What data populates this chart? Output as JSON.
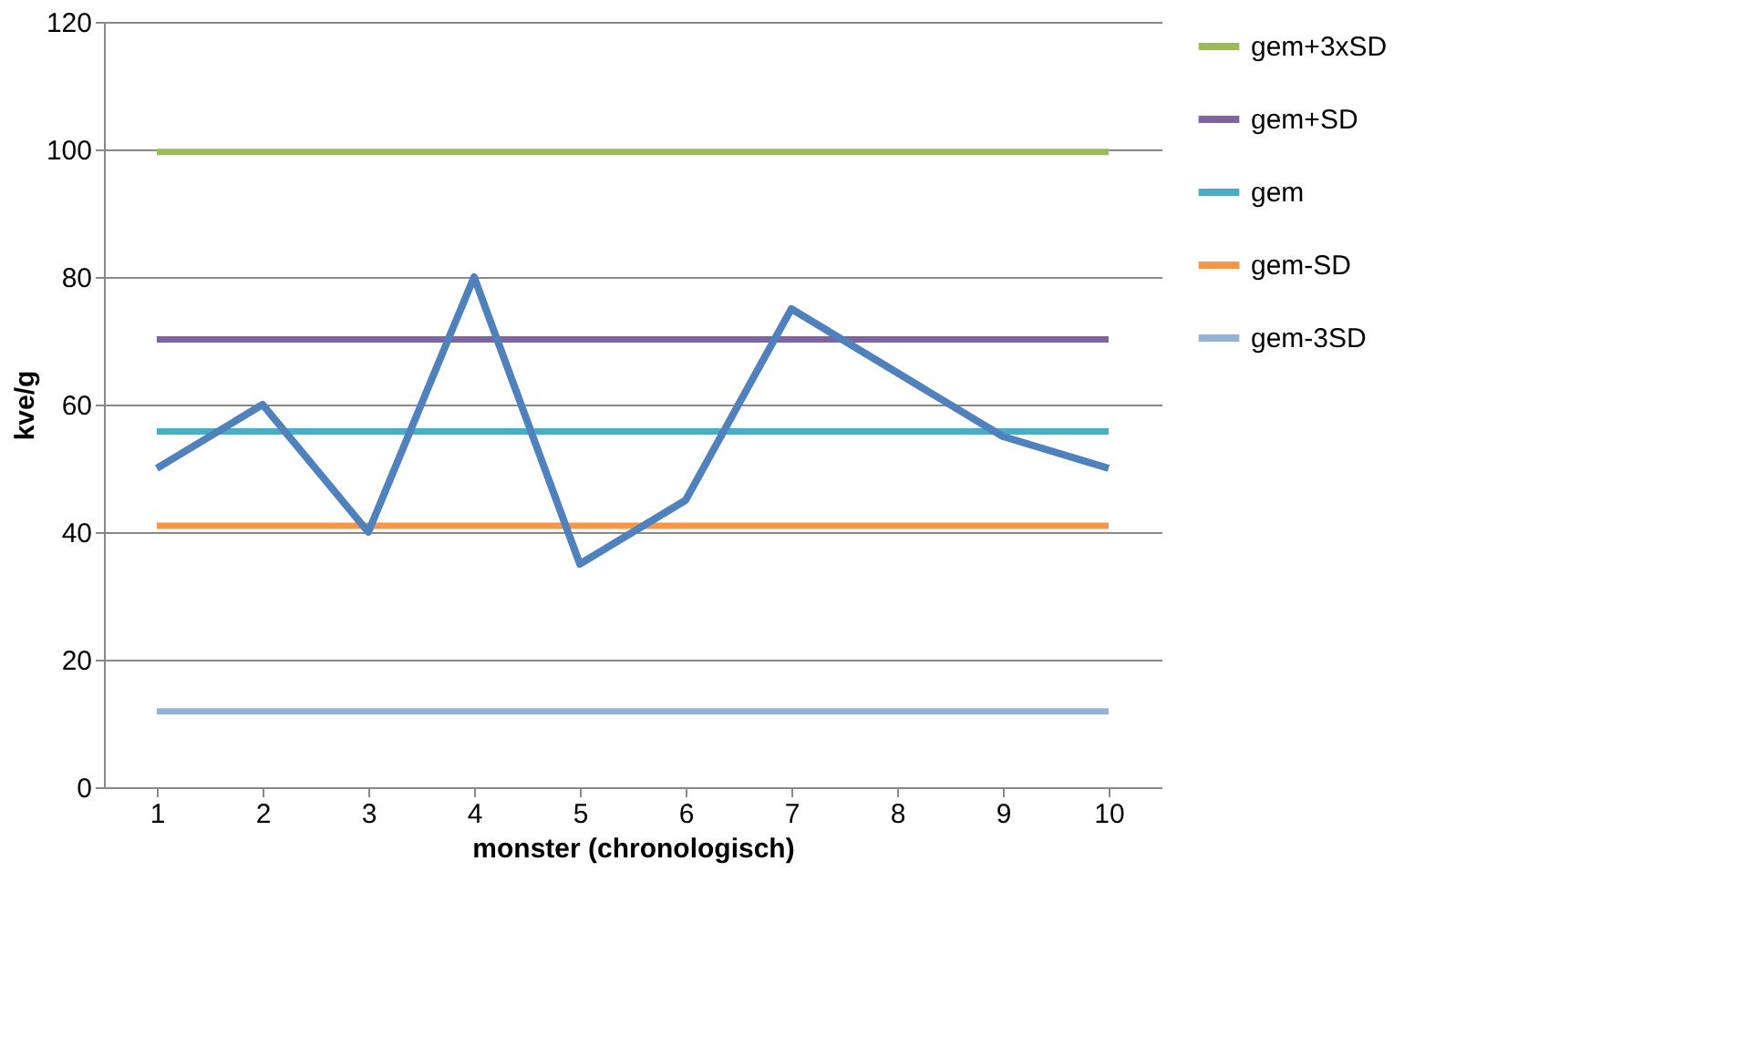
{
  "chart_data": {
    "type": "line",
    "xlabel": "monster (chronologisch)",
    "ylabel": "kve/g",
    "categories": [
      "1",
      "2",
      "3",
      "4",
      "5",
      "6",
      "7",
      "8",
      "9",
      "10"
    ],
    "series": [
      {
        "color": "#4f81bd",
        "values": [
          50,
          60,
          40,
          80,
          35,
          45,
          75,
          65,
          55,
          50
        ]
      },
      {
        "name": "gem+3xSD",
        "color": "#9bbb59",
        "values": [
          99.6,
          99.6,
          99.6,
          99.6,
          99.6,
          99.6,
          99.6,
          99.6,
          99.6,
          99.6
        ]
      },
      {
        "name": "gem+SD",
        "color": "#8064a2",
        "values": [
          70.2,
          70.2,
          70.2,
          70.2,
          70.2,
          70.2,
          70.2,
          70.2,
          70.2,
          70.2
        ]
      },
      {
        "name": "gem",
        "color": "#4bacc6",
        "values": [
          55.8,
          55.8,
          55.8,
          55.8,
          55.8,
          55.8,
          55.8,
          55.8,
          55.8,
          55.8
        ]
      },
      {
        "name": "gem-SD",
        "color": "#f79646",
        "values": [
          41,
          41,
          41,
          41,
          41,
          41,
          41,
          41,
          41,
          41
        ]
      },
      {
        "name": "gem-3SD",
        "color": "#95b3d7",
        "values": [
          11.9,
          11.9,
          11.9,
          11.9,
          11.9,
          11.9,
          11.9,
          11.9,
          11.9,
          11.9
        ]
      }
    ],
    "ylim": [
      0,
      120
    ],
    "yticks": [
      0,
      20,
      40,
      60,
      80,
      100,
      120
    ],
    "grid": "y",
    "legend": "right",
    "marker": "none",
    "line_style": "solid"
  }
}
